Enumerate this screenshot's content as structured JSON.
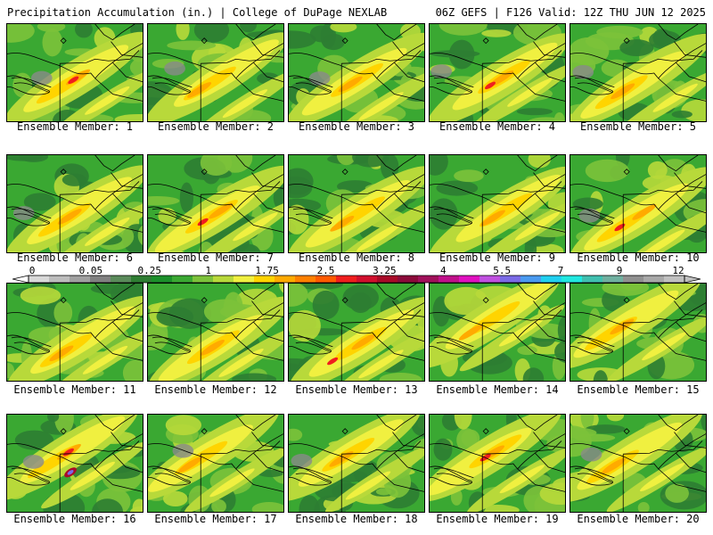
{
  "header": {
    "left": "Precipitation Accumulation (in.) | College of DuPage NEXLAB",
    "right": "06Z GEFS | F126 Valid: 12Z THU JUN 12 2025"
  },
  "colorbar": {
    "tick_labels": [
      "0",
      "0.05",
      "0.25",
      "1",
      "1.75",
      "2.5",
      "3.25",
      "4",
      "5.5",
      "7",
      "9",
      "12"
    ],
    "colors": [
      "#d9d9d9",
      "#bdbdbd",
      "#a0a0a0",
      "#808080",
      "#5a8a5a",
      "#2e7d32",
      "#1b8f2a",
      "#3aa832",
      "#7cc23a",
      "#b8d93a",
      "#f0f040",
      "#ffd400",
      "#ffaa00",
      "#ff8000",
      "#ff5a00",
      "#f01e1e",
      "#d10f2d",
      "#a80a28",
      "#8b0a3a",
      "#a0105a",
      "#c0108a",
      "#e010c0",
      "#c050e0",
      "#7a6ae6",
      "#4a9af0",
      "#20d0f0",
      "#20e8e0",
      "#40c0b0",
      "#70b0a0",
      "#909090",
      "#a8a8a8",
      "#c0c0c0"
    ]
  },
  "panels": [
    {
      "label": "Ensemble Member: 1"
    },
    {
      "label": "Ensemble Member: 2"
    },
    {
      "label": "Ensemble Member: 3"
    },
    {
      "label": "Ensemble Member: 4"
    },
    {
      "label": "Ensemble Member: 5"
    },
    {
      "label": "Ensemble Member: 6"
    },
    {
      "label": "Ensemble Member: 7"
    },
    {
      "label": "Ensemble Member: 8"
    },
    {
      "label": "Ensemble Member: 9"
    },
    {
      "label": "Ensemble Member: 10"
    },
    {
      "label": "Ensemble Member: 11"
    },
    {
      "label": "Ensemble Member: 12"
    },
    {
      "label": "Ensemble Member: 13"
    },
    {
      "label": "Ensemble Member: 14"
    },
    {
      "label": "Ensemble Member: 15"
    },
    {
      "label": "Ensemble Member: 16"
    },
    {
      "label": "Ensemble Member: 17"
    },
    {
      "label": "Ensemble Member: 18"
    },
    {
      "label": "Ensemble Member: 19"
    },
    {
      "label": "Ensemble Member: 20"
    }
  ],
  "map_colors": {
    "dark_green": "#2e7d32",
    "green": "#3aa832",
    "light_green": "#7cc23a",
    "yellow_green": "#b8d93a",
    "yellow": "#f0f040",
    "gold": "#ffd400",
    "orange": "#ffaa00",
    "red": "#f01e1e",
    "dark_red": "#a80a28",
    "gray": "#8a8a8a",
    "purple": "#7a6ae6"
  }
}
